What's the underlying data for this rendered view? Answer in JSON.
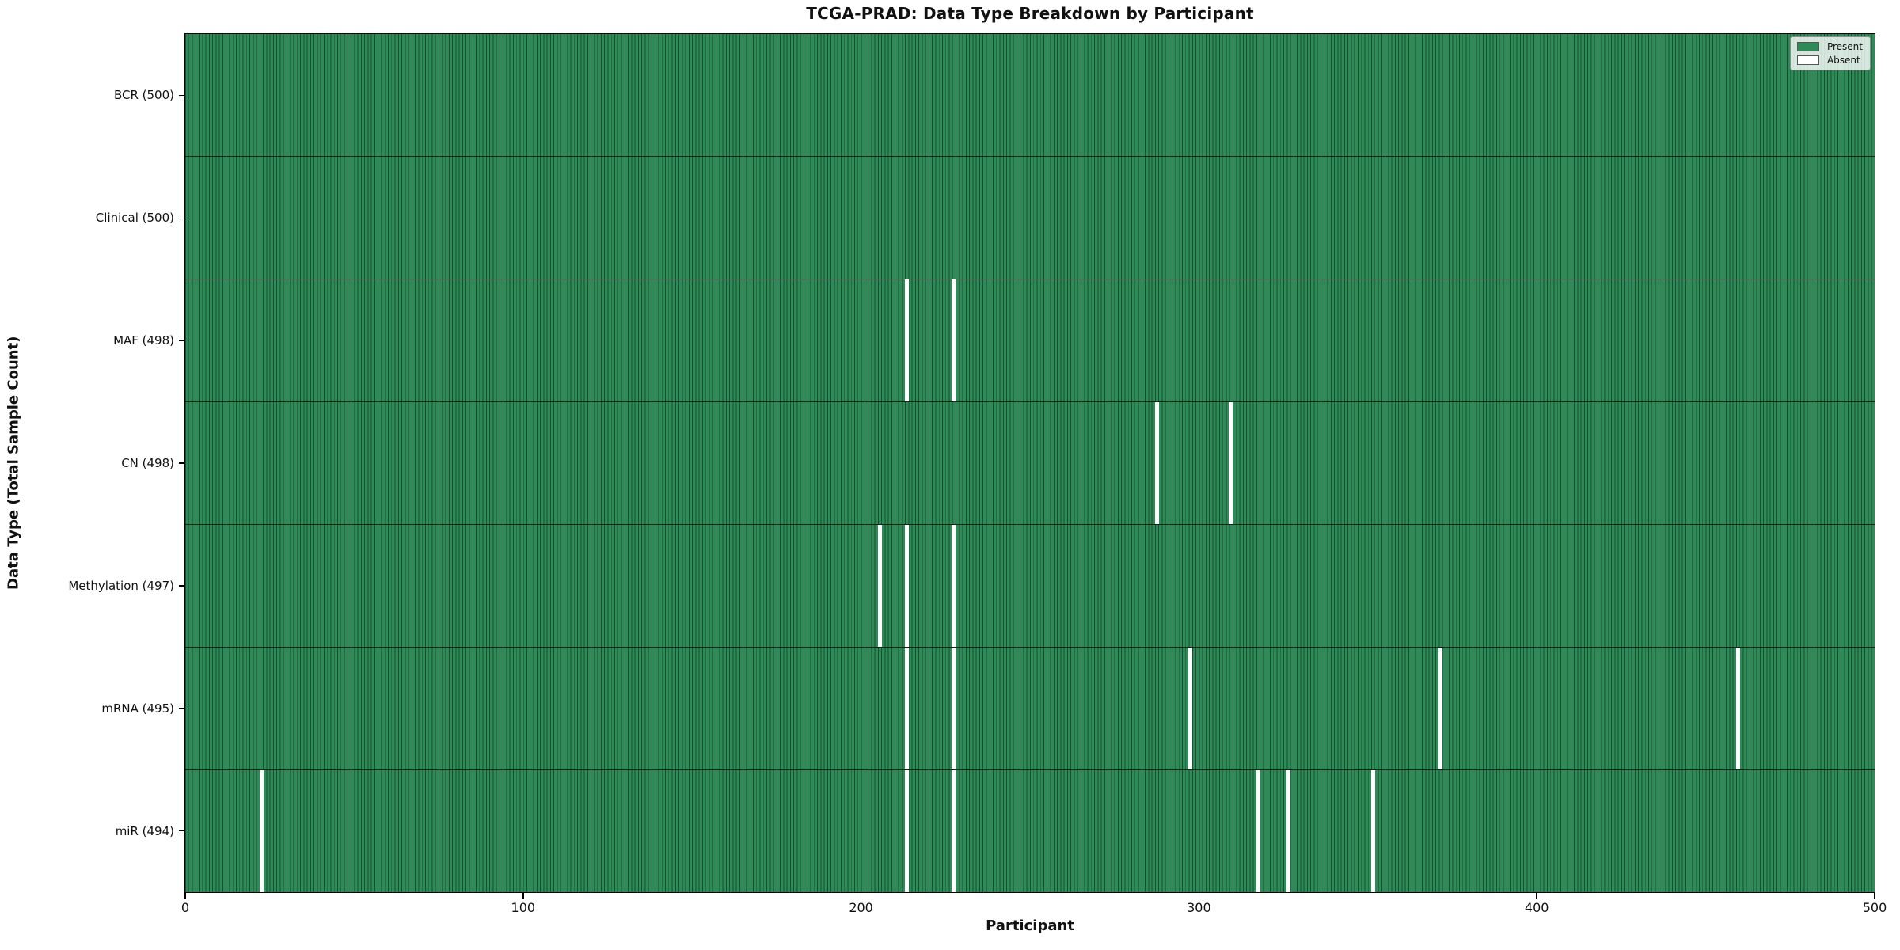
{
  "title": "TCGA-PRAD: Data Type Breakdown by Participant",
  "xlabel": "Participant",
  "ylabel": "Data Type (Total Sample Count)",
  "legend": {
    "present_label": "Present",
    "absent_label": "Absent"
  },
  "colors": {
    "present": "#2e8b57",
    "absent": "#ffffff",
    "bar_edge": "#1b4d31",
    "plot_border": "#000000"
  },
  "chart_data": {
    "type": "heatmap",
    "title": "TCGA-PRAD: Data Type Breakdown by Participant",
    "xlabel": "Participant",
    "ylabel": "Data Type (Total Sample Count)",
    "legend_position": "upper right",
    "cell_states": [
      "Present",
      "Absent"
    ],
    "x_axis": {
      "label": "Participant",
      "min": 0,
      "max": 500,
      "ticks": [
        0,
        100,
        200,
        300,
        400,
        500
      ]
    },
    "rows": [
      {
        "label": "BCR (500)",
        "data_type": "BCR",
        "total": 500,
        "absent_participants": []
      },
      {
        "label": "Clinical (500)",
        "data_type": "Clinical",
        "total": 500,
        "absent_participants": []
      },
      {
        "label": "MAF (498)",
        "data_type": "MAF",
        "total": 498,
        "absent_participants": [
          213,
          227
        ]
      },
      {
        "label": "CN (498)",
        "data_type": "CN",
        "total": 498,
        "absent_participants": [
          287,
          309
        ]
      },
      {
        "label": "Methylation (497)",
        "data_type": "Methylation",
        "total": 497,
        "absent_participants": [
          205,
          213,
          227
        ]
      },
      {
        "label": "mRNA (495)",
        "data_type": "mRNA",
        "total": 495,
        "absent_participants": [
          213,
          227,
          297,
          371,
          459
        ]
      },
      {
        "label": "miR (494)",
        "data_type": "miR",
        "total": 494,
        "absent_participants": [
          22,
          213,
          227,
          317,
          326,
          351
        ]
      }
    ]
  }
}
